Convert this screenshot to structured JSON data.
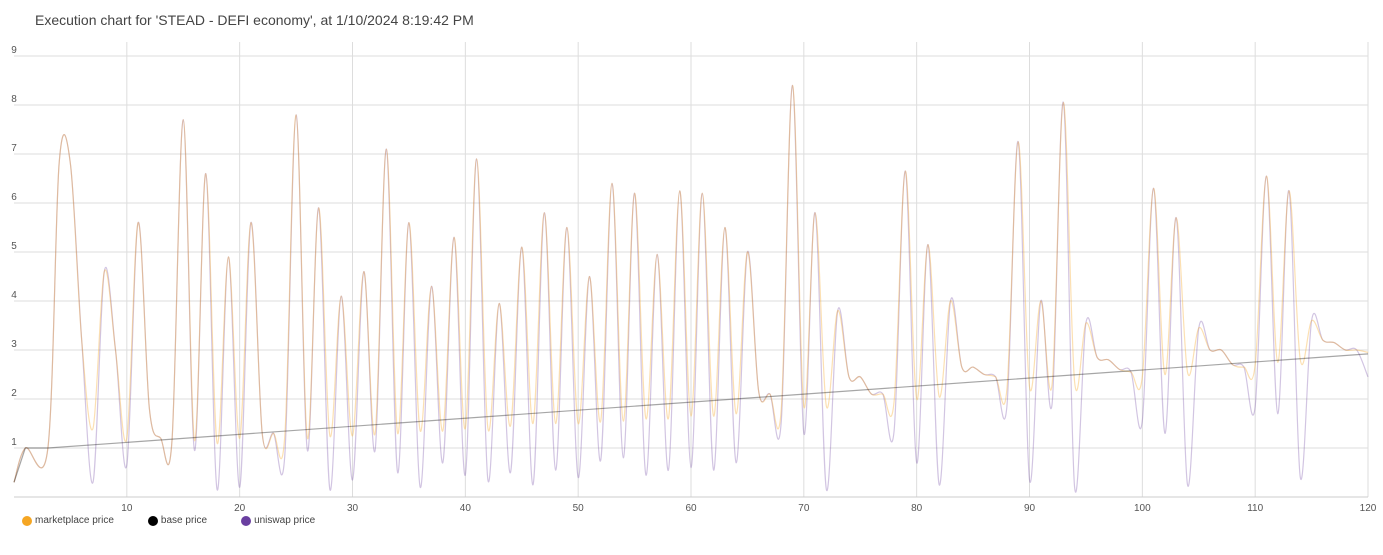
{
  "chart_data": {
    "type": "line",
    "title": "Execution chart for 'STEAD - DEFI economy', at 1/10/2024 8:19:42 PM",
    "xlabel": "",
    "ylabel": "",
    "xlim": [
      0,
      120
    ],
    "ylim": [
      0,
      9
    ],
    "x_ticks": [
      10,
      20,
      30,
      40,
      50,
      60,
      70,
      80,
      90,
      100,
      110,
      120
    ],
    "y_ticks": [
      1,
      2,
      3,
      4,
      5,
      6,
      7,
      8,
      9
    ],
    "grid": true,
    "legend_position": "bottom-left",
    "series": [
      {
        "name": "marketplace price",
        "color": "#f5a623",
        "x": [
          0,
          1,
          3,
          4,
          5,
          6,
          7,
          8,
          9,
          10,
          11,
          12,
          13,
          14,
          15,
          16,
          17,
          18,
          19,
          20,
          21,
          22,
          23,
          24,
          25,
          26,
          27,
          28,
          29,
          30,
          31,
          32,
          33,
          34,
          35,
          36,
          37,
          38,
          39,
          40,
          41,
          42,
          43,
          44,
          45,
          46,
          47,
          48,
          49,
          50,
          51,
          52,
          53,
          54,
          55,
          56,
          57,
          58,
          59,
          60,
          61,
          62,
          63,
          64,
          65,
          66,
          67,
          68,
          69,
          70,
          71,
          72,
          73,
          74,
          75,
          76,
          77,
          78,
          79,
          80,
          81,
          82,
          83,
          84,
          85,
          86,
          87,
          88,
          89,
          90,
          91,
          92,
          93,
          94,
          95,
          96,
          97,
          98,
          99,
          100,
          101,
          102,
          103,
          104,
          105,
          106,
          107,
          108,
          109,
          110,
          111,
          112,
          113,
          114,
          115,
          116,
          117,
          118,
          119,
          120
        ],
        "values": [
          0.3,
          1.0,
          1.0,
          6.8,
          6.8,
          3.2,
          1.4,
          4.6,
          3.0,
          1.2,
          5.6,
          1.8,
          1.2,
          1.15,
          7.7,
          1.15,
          6.6,
          1.1,
          4.9,
          1.2,
          5.6,
          1.3,
          1.3,
          1.25,
          7.8,
          1.2,
          5.9,
          1.25,
          4.1,
          1.25,
          4.6,
          1.3,
          7.1,
          1.3,
          5.6,
          1.35,
          4.3,
          1.35,
          5.3,
          1.4,
          6.9,
          1.4,
          3.95,
          1.45,
          5.1,
          1.5,
          5.8,
          1.5,
          5.5,
          1.5,
          4.5,
          1.55,
          6.4,
          1.55,
          6.2,
          1.6,
          4.95,
          1.6,
          6.25,
          1.65,
          6.2,
          1.65,
          5.5,
          1.7,
          5.0,
          2.15,
          2.1,
          1.8,
          8.4,
          1.85,
          5.8,
          1.85,
          3.8,
          2.45,
          2.45,
          2.1,
          2.1,
          1.95,
          6.65,
          2.0,
          5.15,
          2.05,
          4.0,
          2.65,
          2.65,
          2.5,
          2.45,
          2.2,
          7.25,
          2.25,
          4.0,
          2.3,
          8.05,
          2.35,
          3.55,
          2.85,
          2.8,
          2.6,
          2.55,
          2.45,
          6.3,
          2.5,
          5.7,
          2.55,
          3.45,
          3.0,
          3.0,
          2.7,
          2.65,
          2.7,
          6.55,
          2.75,
          6.25,
          2.8,
          3.6,
          3.2,
          3.15,
          3.0,
          3.0,
          2.95
        ]
      },
      {
        "name": "base price",
        "color": "#000000",
        "x": [
          0,
          1,
          3,
          120
        ],
        "values": [
          0.3,
          1.0,
          1.0,
          2.92
        ]
      },
      {
        "name": "uniswap price",
        "color": "#6a3fa0",
        "x": [
          0,
          1,
          3,
          4,
          5,
          6,
          7,
          8,
          9,
          10,
          11,
          12,
          13,
          14,
          15,
          16,
          17,
          18,
          19,
          20,
          21,
          22,
          23,
          24,
          25,
          26,
          27,
          28,
          29,
          30,
          31,
          32,
          33,
          34,
          35,
          36,
          37,
          38,
          39,
          40,
          41,
          42,
          43,
          44,
          45,
          46,
          47,
          48,
          49,
          50,
          51,
          52,
          53,
          54,
          55,
          56,
          57,
          58,
          59,
          60,
          61,
          62,
          63,
          64,
          65,
          66,
          67,
          68,
          69,
          70,
          71,
          72,
          73,
          74,
          75,
          76,
          77,
          78,
          79,
          80,
          81,
          82,
          83,
          84,
          85,
          86,
          87,
          88,
          89,
          90,
          91,
          92,
          93,
          94,
          95,
          96,
          97,
          98,
          99,
          100,
          101,
          102,
          103,
          104,
          105,
          106,
          107,
          108,
          109,
          110,
          111,
          112,
          113,
          114,
          115,
          116,
          117,
          118,
          119,
          120
        ],
        "values": [
          0.3,
          1.0,
          1.0,
          6.8,
          6.8,
          3.2,
          0.3,
          4.6,
          3.0,
          0.65,
          5.6,
          1.8,
          1.2,
          1.15,
          7.7,
          0.95,
          6.6,
          0.15,
          4.9,
          0.2,
          5.6,
          1.3,
          1.3,
          0.85,
          7.8,
          0.95,
          5.9,
          0.15,
          4.1,
          0.35,
          4.6,
          0.95,
          7.1,
          0.5,
          5.6,
          0.2,
          4.3,
          0.7,
          5.3,
          0.45,
          6.9,
          0.35,
          3.95,
          0.5,
          5.1,
          0.25,
          5.8,
          0.55,
          5.5,
          0.4,
          4.5,
          0.75,
          6.4,
          0.8,
          6.2,
          0.45,
          4.95,
          0.55,
          6.25,
          0.6,
          6.2,
          0.55,
          5.5,
          0.7,
          5.0,
          2.15,
          2.1,
          1.55,
          8.4,
          1.3,
          5.8,
          0.15,
          3.8,
          2.45,
          2.45,
          2.1,
          2.1,
          1.35,
          6.65,
          0.7,
          5.15,
          0.25,
          4.0,
          2.65,
          2.65,
          2.5,
          2.45,
          1.85,
          7.25,
          0.35,
          4.0,
          1.9,
          8.05,
          0.2,
          3.55,
          2.85,
          2.8,
          2.6,
          2.55,
          1.55,
          6.3,
          1.3,
          5.7,
          0.25,
          3.45,
          3.0,
          3.0,
          2.7,
          2.65,
          1.85,
          6.55,
          1.7,
          6.25,
          0.4,
          3.6,
          3.2,
          3.15,
          3.0,
          3.0,
          2.45
        ]
      }
    ]
  }
}
